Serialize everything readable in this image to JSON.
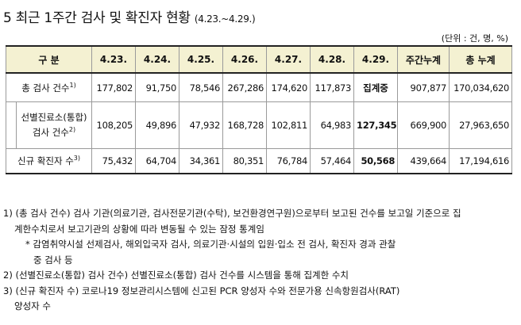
{
  "title": {
    "main": "5 최근 1주간 검사 및 확진자 현황",
    "range": "(4.23.~4.29.)"
  },
  "unit": "(단위 : 건, 명, %)",
  "table": {
    "headers": [
      "구 분",
      "4.23.",
      "4.24.",
      "4.25.",
      "4.26.",
      "4.27.",
      "4.28.",
      "4.29.",
      "주간누계",
      "총 누계"
    ],
    "rows": [
      {
        "label": "총 검사 건수",
        "sup": "1)",
        "values": [
          "177,802",
          "91,750",
          "78,546",
          "267,286",
          "174,620",
          "117,873",
          "집계중",
          "907,877",
          "170,034,620"
        ]
      },
      {
        "label": "선별진료소(통합) 검사 건수",
        "sup": "2)",
        "values": [
          "108,205",
          "49,896",
          "47,932",
          "168,728",
          "102,811",
          "64,983",
          "127,345",
          "669,900",
          "27,963,650"
        ]
      },
      {
        "label": "신규 확진자 수",
        "sup": "3)",
        "values": [
          "75,432",
          "64,704",
          "34,361",
          "80,351",
          "76,784",
          "57,464",
          "50,568",
          "439,664",
          "17,194,616"
        ]
      }
    ]
  },
  "notes": {
    "n1a": "1) (총 검사 건수) 검사 기관(의료기관, 검사전문기관(수탁), 보건환경연구원)으로부터 보고된 건수를 보고일 기준으로 집",
    "n1b": "계한수치로서 보고기관의 상황에 따라 변동될 수 있는 잠정 통계임",
    "n1c": "* 감염취약시설 선제검사, 해외입국자 검사, 의료기관·시설의 입원·입소 전 검사, 확진자 경과 관찰",
    "n1d": "중 검사 등",
    "n2": "2) (선별진료소(통합) 검사 건수) 선별진료소(통합) 검사 건수를 시스템을 통해 집계한 수치",
    "n3a": "3) (신규 확진자 수) 코로나19 정보관리시스템에 신고된 PCR 양성자 수와 전문가용 신속항원검사(RAT)",
    "n3b": "양성자 수"
  }
}
